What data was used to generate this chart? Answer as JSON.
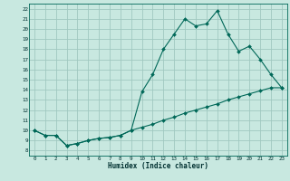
{
  "xlabel": "Humidex (Indice chaleur)",
  "bg_color": "#c8e8e0",
  "grid_color": "#a0c8c0",
  "line_color": "#006858",
  "spine_color": "#006858",
  "xlim": [
    -0.5,
    23.5
  ],
  "ylim": [
    7.5,
    22.5
  ],
  "xticks": [
    0,
    1,
    2,
    3,
    4,
    5,
    6,
    7,
    8,
    9,
    10,
    11,
    12,
    13,
    14,
    15,
    16,
    17,
    18,
    19,
    20,
    21,
    22,
    23
  ],
  "yticks": [
    8,
    9,
    10,
    11,
    12,
    13,
    14,
    15,
    16,
    17,
    18,
    19,
    20,
    21,
    22
  ],
  "line1_x": [
    0,
    1,
    2,
    3,
    4,
    5,
    6,
    7,
    8,
    9,
    10,
    11,
    12,
    13,
    14,
    15,
    16,
    17,
    18,
    19,
    20,
    21,
    22,
    23
  ],
  "line1_y": [
    10.0,
    9.5,
    9.5,
    8.5,
    8.7,
    9.0,
    9.2,
    9.3,
    9.5,
    10.0,
    13.8,
    15.5,
    18.0,
    19.5,
    21.0,
    20.3,
    20.5,
    21.8,
    19.5,
    17.8,
    18.3,
    17.0,
    15.5,
    14.2
  ],
  "line2_x": [
    0,
    1,
    2,
    3,
    4,
    5,
    6,
    7,
    8,
    9,
    10,
    11,
    12,
    13,
    14,
    15,
    16,
    17,
    18,
    19,
    20,
    21,
    22,
    23
  ],
  "line2_y": [
    10.0,
    9.5,
    9.5,
    8.5,
    8.7,
    9.0,
    9.2,
    9.3,
    9.5,
    10.0,
    10.3,
    10.6,
    11.0,
    11.3,
    11.7,
    12.0,
    12.3,
    12.6,
    13.0,
    13.3,
    13.6,
    13.9,
    14.2,
    14.2
  ],
  "markersize": 2.0,
  "linewidth": 0.8,
  "xlabel_fontsize": 5.5,
  "tick_fontsize": 4.2
}
